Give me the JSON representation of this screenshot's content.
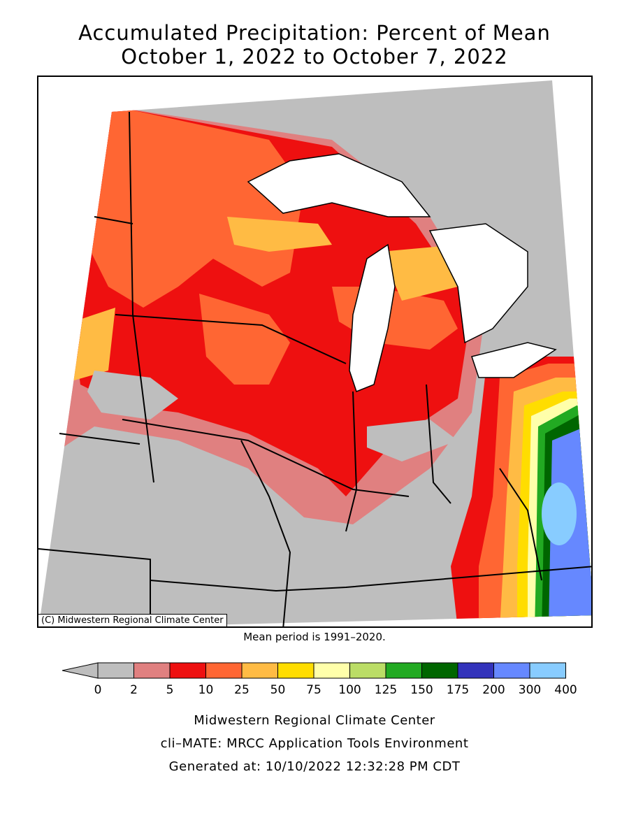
{
  "title_line1": "Accumulated Precipitation: Percent of Mean",
  "title_line2": "October 1, 2022 to October 7, 2022",
  "copyright": "(C) Midwestern Regional Climate Center",
  "mean_note": "Mean period is 1991–2020.",
  "legend": {
    "ticks": [
      "0",
      "2",
      "5",
      "10",
      "25",
      "50",
      "75",
      "100",
      "125",
      "150",
      "175",
      "200",
      "300",
      "400"
    ],
    "below_color": "#bebebe",
    "colors": [
      "#bebebe",
      "#e08080",
      "#ee1010",
      "#ff6633",
      "#ffbb44",
      "#ffdd00",
      "#ffffaa",
      "#bbdd66",
      "#22aa22",
      "#006600",
      "#3333bb",
      "#6688ff",
      "#88ccff"
    ]
  },
  "footer_line1": "Midwestern Regional Climate Center",
  "footer_line2": "cli–MATE: MRCC Application Tools Environment",
  "footer_line3": "Generated at: 10/10/2022 12:32:28 PM CDT"
}
